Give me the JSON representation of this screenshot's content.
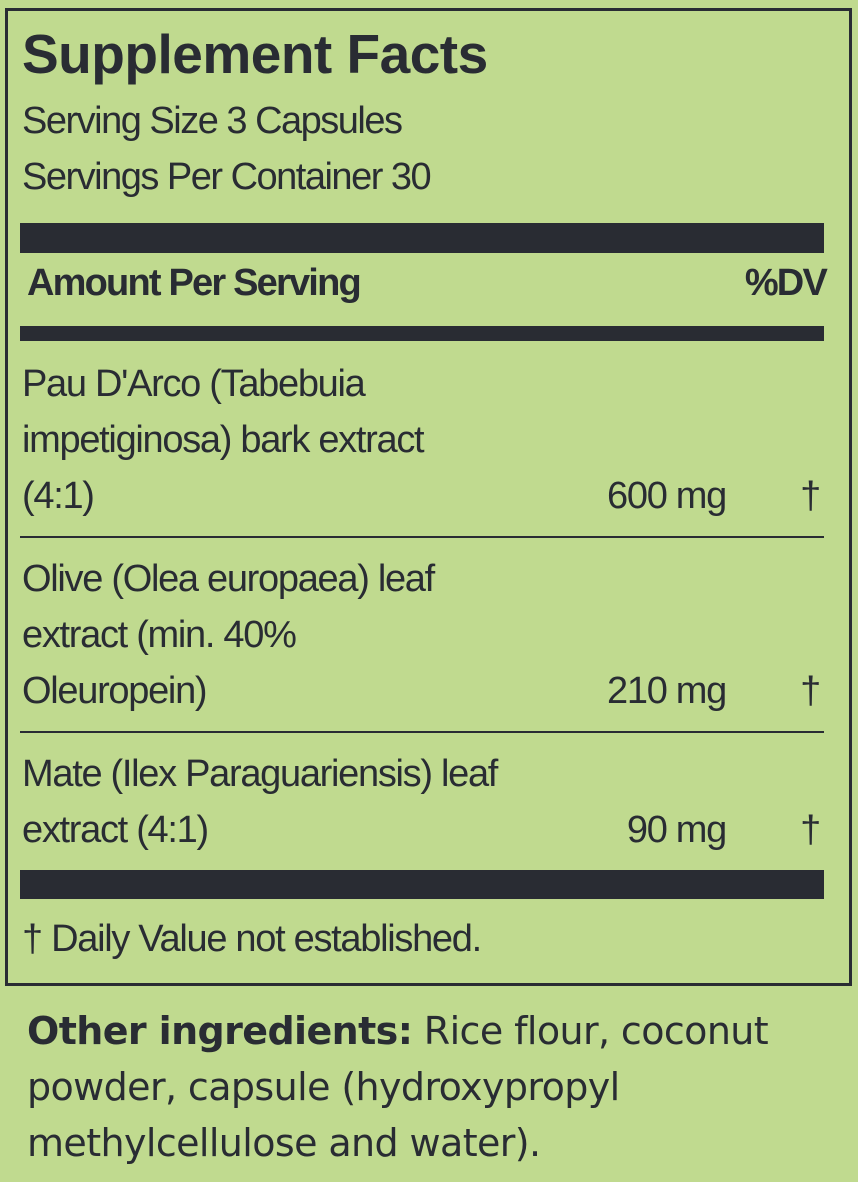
{
  "title": "Supplement Facts",
  "serving_size": "Serving Size 3 Capsules",
  "servings_per_container": "Servings Per Container 30",
  "header": {
    "amount_label": "Amount Per Serving",
    "dv_label": "%DV"
  },
  "ingredients": [
    {
      "name": "Pau D'Arco (Tabebuia impetiginosa) bark extract (4:1)",
      "amount": "600 mg",
      "dv": "†"
    },
    {
      "name": "Olive (Olea europaea) leaf extract (min. 40% Oleuropein)",
      "amount": "210 mg",
      "dv": "†"
    },
    {
      "name": "Mate (Ilex Paraguariensis) leaf extract (4:1)",
      "amount": "90 mg",
      "dv": "†"
    }
  ],
  "footnote": "† Daily Value not established.",
  "other_ingredients": {
    "label": "Other ingredients:",
    "text": " Rice flour, coconut powder, capsule (hydroxypropyl methylcellulose and water)."
  },
  "colors": {
    "background": "#c0da8f",
    "ink": "#292c33"
  }
}
